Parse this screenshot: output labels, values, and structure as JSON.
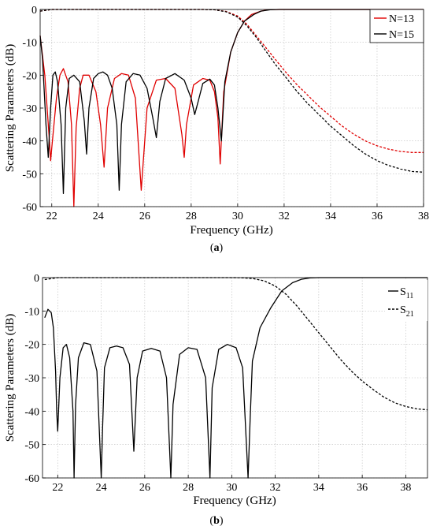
{
  "figure": {
    "panels": [
      {
        "label_prefix": "(",
        "label_letter": "a",
        "label_suffix": ")"
      },
      {
        "label_prefix": "(",
        "label_letter": "b",
        "label_suffix": ")"
      }
    ]
  },
  "chart_data": [
    {
      "type": "line",
      "xlabel": "Frequency (GHz)",
      "ylabel": "Scattering Parameters (dB)",
      "xlim": [
        21.5,
        38
      ],
      "ylim": [
        -60,
        0
      ],
      "xticks": [
        22,
        24,
        26,
        28,
        30,
        32,
        34,
        36,
        38
      ],
      "yticks": [
        0,
        -10,
        -20,
        -30,
        -40,
        -50,
        -60
      ],
      "grid": true,
      "legend_position": "top-right",
      "legend": [
        {
          "label": "N=13",
          "color": "#e00000"
        },
        {
          "label": "N=15",
          "color": "#000000"
        }
      ],
      "series": [
        {
          "name": "N=13",
          "param": "S11",
          "color": "#e00000",
          "dash": "solid",
          "x": [
            21.5,
            21.7,
            21.9,
            21.95,
            22.0,
            22.2,
            22.35,
            22.5,
            22.7,
            22.85,
            22.95,
            23.05,
            23.2,
            23.35,
            23.6,
            23.9,
            24.1,
            24.25,
            24.4,
            24.7,
            25.0,
            25.3,
            25.6,
            25.85,
            26.1,
            26.5,
            26.9,
            27.3,
            27.6,
            27.7,
            27.8,
            28.1,
            28.5,
            28.8,
            29.0,
            29.15,
            29.25,
            29.4,
            29.7,
            30.0,
            30.3,
            30.6,
            31.0,
            31.3,
            31.8,
            32.3,
            33.0,
            38.0
          ],
          "y": [
            -8,
            -20,
            -40,
            -46,
            -42,
            -27,
            -20,
            -18,
            -22,
            -35,
            -60,
            -36,
            -24,
            -20,
            -20,
            -25,
            -35,
            -48,
            -30,
            -21,
            -19.5,
            -20,
            -27,
            -55,
            -30,
            -21.5,
            -21,
            -24,
            -38,
            -45,
            -35,
            -23,
            -21,
            -21.5,
            -25,
            -33,
            -47,
            -25,
            -13,
            -7,
            -3.5,
            -1.5,
            -0.5,
            -0.1,
            0,
            0,
            0,
            0
          ]
        },
        {
          "name": "N=13",
          "param": "S21",
          "color": "#e00000",
          "dash": "dashed",
          "x": [
            21.5,
            22.0,
            28.5,
            29.0,
            29.5,
            30.0,
            30.4,
            30.8,
            31.2,
            31.6,
            32.0,
            32.5,
            33.0,
            33.5,
            34.0,
            34.5,
            35.0,
            35.5,
            36.0,
            36.5,
            37.0,
            37.5,
            38.0
          ],
          "y": [
            -0.5,
            0,
            0,
            -0.1,
            -0.6,
            -2,
            -4.5,
            -8,
            -11.5,
            -15,
            -18.5,
            -22.5,
            -26,
            -29.5,
            -32.5,
            -35.5,
            -38,
            -40,
            -41.5,
            -42.5,
            -43.2,
            -43.5,
            -43.5
          ]
        },
        {
          "name": "N=15",
          "param": "S11",
          "color": "#000000",
          "dash": "solid",
          "x": [
            21.5,
            21.6,
            21.75,
            21.85,
            21.95,
            22.05,
            22.15,
            22.25,
            22.4,
            22.5,
            22.6,
            22.75,
            22.95,
            23.2,
            23.4,
            23.5,
            23.6,
            23.8,
            24.0,
            24.2,
            24.4,
            24.6,
            24.8,
            24.9,
            25.0,
            25.2,
            25.5,
            25.8,
            26.1,
            26.35,
            26.5,
            26.65,
            26.9,
            27.3,
            27.7,
            28.0,
            28.15,
            28.3,
            28.5,
            28.8,
            29.0,
            29.15,
            29.3,
            29.45,
            29.7,
            30.0,
            30.3,
            30.7,
            31.0,
            31.4,
            31.8,
            32.5,
            38.0
          ],
          "y": [
            -8,
            -15,
            -35,
            -45,
            -30,
            -20,
            -19,
            -22,
            -35,
            -56,
            -30,
            -21,
            -20,
            -22,
            -34,
            -44,
            -30,
            -21,
            -19.5,
            -19,
            -20,
            -24,
            -35,
            -55,
            -35,
            -22,
            -19.5,
            -20,
            -24,
            -33,
            -39,
            -28,
            -21,
            -19.5,
            -21.5,
            -27,
            -32,
            -28,
            -22.5,
            -21.2,
            -23,
            -30,
            -40,
            -22,
            -13,
            -7,
            -3.5,
            -1.5,
            -0.5,
            -0.1,
            0,
            0,
            0
          ]
        },
        {
          "name": "N=15",
          "param": "S21",
          "color": "#000000",
          "dash": "dashed",
          "x": [
            21.5,
            22.0,
            28.5,
            29.0,
            29.5,
            30.0,
            30.4,
            30.8,
            31.2,
            31.6,
            32.0,
            32.5,
            33.0,
            33.5,
            34.0,
            34.5,
            35.0,
            35.5,
            36.0,
            36.5,
            37.0,
            37.5,
            38.0
          ],
          "y": [
            -0.5,
            0,
            0,
            -0.1,
            -0.7,
            -2.3,
            -5,
            -8.5,
            -12.5,
            -16.5,
            -20,
            -24.5,
            -28.5,
            -32,
            -35.5,
            -38.5,
            -41.5,
            -44,
            -46,
            -47.5,
            -48.5,
            -49.3,
            -49.5
          ]
        }
      ]
    },
    {
      "type": "line",
      "xlabel": "Frequency (GHz)",
      "ylabel": "Scattering Parameters (dB)",
      "xlim": [
        21.3,
        39
      ],
      "ylim": [
        -60,
        0
      ],
      "xticks": [
        22,
        24,
        26,
        28,
        30,
        32,
        34,
        36,
        38
      ],
      "yticks": [
        0,
        -10,
        -20,
        -30,
        -40,
        -50,
        -60
      ],
      "grid": true,
      "legend_position": "top-right",
      "legend": [
        {
          "label_main": "S",
          "label_sub": "11",
          "color": "#000000",
          "dash": "solid"
        },
        {
          "label_main": "S",
          "label_sub": "21",
          "color": "#000000",
          "dash": "dashed"
        }
      ],
      "series": [
        {
          "name": "S11",
          "color": "#000000",
          "dash": "solid",
          "x": [
            21.4,
            21.55,
            21.7,
            21.8,
            21.9,
            21.95,
            22.0,
            22.1,
            22.25,
            22.4,
            22.55,
            22.7,
            22.75,
            22.82,
            22.95,
            23.2,
            23.5,
            23.8,
            24.0,
            24.06,
            24.15,
            24.4,
            24.7,
            25.0,
            25.3,
            25.5,
            25.65,
            25.9,
            26.3,
            26.7,
            27.0,
            27.2,
            27.3,
            27.6,
            28.0,
            28.4,
            28.8,
            29.0,
            29.1,
            29.4,
            29.8,
            30.2,
            30.5,
            30.75,
            30.85,
            30.95,
            31.3,
            31.8,
            32.3,
            32.8,
            33.2,
            33.6,
            34.0,
            35.0,
            39.0
          ],
          "y": [
            -12,
            -9.5,
            -10.5,
            -15,
            -28,
            -40,
            -46,
            -30,
            -21,
            -20,
            -24,
            -40,
            -60,
            -38,
            -24,
            -19.5,
            -20,
            -28,
            -60,
            -45,
            -27,
            -21,
            -20.5,
            -21,
            -26,
            -52,
            -30,
            -22,
            -21.2,
            -22,
            -30,
            -60,
            -38,
            -23,
            -21,
            -21.5,
            -30,
            -60,
            -33,
            -21.5,
            -20,
            -21,
            -27,
            -60,
            -42,
            -25,
            -15,
            -9,
            -4,
            -1.5,
            -0.5,
            -0.1,
            0,
            0,
            0
          ]
        },
        {
          "name": "S21",
          "color": "#000000",
          "dash": "dashed",
          "x": [
            21.4,
            22.0,
            30.0,
            30.5,
            31.0,
            31.5,
            32.0,
            32.5,
            33.0,
            33.5,
            34.0,
            34.5,
            35.0,
            35.5,
            36.0,
            36.5,
            37.0,
            37.5,
            38.0,
            38.5,
            39.0
          ],
          "y": [
            -0.6,
            0,
            0,
            -0.05,
            -0.3,
            -1,
            -2.5,
            -5,
            -8.5,
            -12.5,
            -16.5,
            -20.5,
            -24.5,
            -28,
            -31,
            -33.5,
            -35.8,
            -37.5,
            -38.6,
            -39.3,
            -39.6
          ]
        }
      ]
    }
  ]
}
